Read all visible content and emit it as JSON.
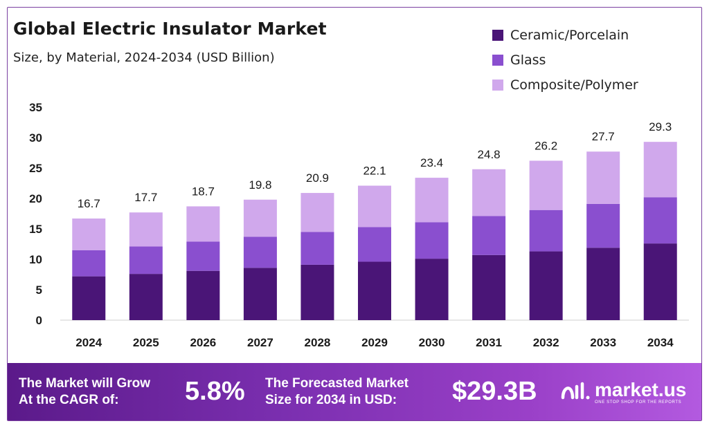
{
  "chart_data": {
    "type": "bar",
    "stacked": true,
    "title": "Global Electric Insulator Market",
    "subtitle": "Size, by Material, 2024-2034 (USD Billion)",
    "categories": [
      "2024",
      "2025",
      "2026",
      "2027",
      "2028",
      "2029",
      "2030",
      "2031",
      "2032",
      "2033",
      "2034"
    ],
    "series": [
      {
        "name": "Ceramic/Porcelain",
        "color": "#4a1577",
        "values": [
          7.2,
          7.6,
          8.1,
          8.6,
          9.1,
          9.6,
          10.1,
          10.7,
          11.3,
          11.9,
          12.6
        ]
      },
      {
        "name": "Glass",
        "color": "#8a4fcf",
        "values": [
          4.3,
          4.5,
          4.8,
          5.1,
          5.4,
          5.7,
          6.0,
          6.4,
          6.8,
          7.2,
          7.6
        ]
      },
      {
        "name": "Composite/Polymer",
        "color": "#d0a8ec",
        "values": [
          5.2,
          5.6,
          5.8,
          6.1,
          6.4,
          6.8,
          7.3,
          7.7,
          8.1,
          8.6,
          9.1
        ]
      }
    ],
    "totals": [
      "16.7",
      "17.7",
      "18.7",
      "19.8",
      "20.9",
      "22.1",
      "23.4",
      "24.8",
      "26.2",
      "27.7",
      "29.3"
    ],
    "yticks": [
      "0",
      "5",
      "10",
      "15",
      "20",
      "25",
      "30",
      "35"
    ],
    "ylim": [
      0,
      35
    ],
    "grid": false,
    "legend_position": "top-right"
  },
  "banner": {
    "cagr_label_line1": "The Market will Grow",
    "cagr_label_line2": "At the CAGR of:",
    "cagr_value": "5.8%",
    "forecast_label_line1": "The Forecasted Market",
    "forecast_label_line2": "Size for 2034 in USD:",
    "forecast_value": "$29.3B",
    "brand_name": "market.us",
    "brand_tagline": "ONE STOP SHOP FOR THE REPORTS"
  }
}
